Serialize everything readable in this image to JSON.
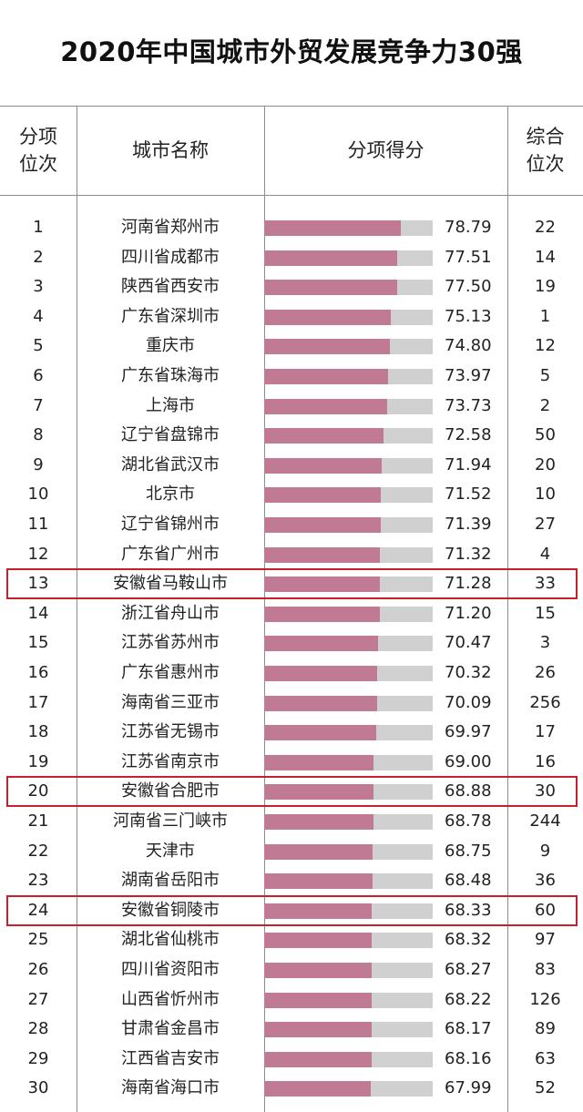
{
  "title": "2020年中国城市外贸发展竞争力30强",
  "headers": {
    "rank": "分项\n位次",
    "city": "城市名称",
    "score": "分项得分",
    "total": "综合\n位次"
  },
  "colors": {
    "bar": "#c07a93",
    "bar_track": "#d0d0d0",
    "highlight": "#c8202a"
  },
  "chart_data": {
    "type": "bar",
    "orientation": "horizontal",
    "title": "2020年中国城市外贸发展竞争力30强",
    "xlim": [
      0,
      100
    ],
    "grid": false,
    "highlighted_ranks": [
      13,
      20,
      24
    ],
    "rows": [
      {
        "rank": "1",
        "city": "河南省郑州市",
        "score": 78.79,
        "score_text": "78.79",
        "total": "22"
      },
      {
        "rank": "2",
        "city": "四川省成都市",
        "score": 77.51,
        "score_text": "77.51",
        "total": "14"
      },
      {
        "rank": "3",
        "city": "陕西省西安市",
        "score": 77.5,
        "score_text": "77.50",
        "total": "19"
      },
      {
        "rank": "4",
        "city": "广东省深圳市",
        "score": 75.13,
        "score_text": "75.13",
        "total": "1"
      },
      {
        "rank": "5",
        "city": "重庆市",
        "score": 74.8,
        "score_text": "74.80",
        "total": "12"
      },
      {
        "rank": "6",
        "city": "广东省珠海市",
        "score": 73.97,
        "score_text": "73.97",
        "total": "5"
      },
      {
        "rank": "7",
        "city": "上海市",
        "score": 73.73,
        "score_text": "73.73",
        "total": "2"
      },
      {
        "rank": "8",
        "city": "辽宁省盘锦市",
        "score": 72.58,
        "score_text": "72.58",
        "total": "50"
      },
      {
        "rank": "9",
        "city": "湖北省武汉市",
        "score": 71.94,
        "score_text": "71.94",
        "total": "20"
      },
      {
        "rank": "10",
        "city": "北京市",
        "score": 71.52,
        "score_text": "71.52",
        "total": "10"
      },
      {
        "rank": "11",
        "city": "辽宁省锦州市",
        "score": 71.39,
        "score_text": "71.39",
        "total": "27"
      },
      {
        "rank": "12",
        "city": "广东省广州市",
        "score": 71.32,
        "score_text": "71.32",
        "total": "4"
      },
      {
        "rank": "13",
        "city": "安徽省马鞍山市",
        "score": 71.28,
        "score_text": "71.28",
        "total": "33"
      },
      {
        "rank": "14",
        "city": "浙江省舟山市",
        "score": 71.2,
        "score_text": "71.20",
        "total": "15"
      },
      {
        "rank": "15",
        "city": "江苏省苏州市",
        "score": 70.47,
        "score_text": "70.47",
        "total": "3"
      },
      {
        "rank": "16",
        "city": "广东省惠州市",
        "score": 70.32,
        "score_text": "70.32",
        "total": "26"
      },
      {
        "rank": "17",
        "city": "海南省三亚市",
        "score": 70.09,
        "score_text": "70.09",
        "total": "256"
      },
      {
        "rank": "18",
        "city": "江苏省无锡市",
        "score": 69.97,
        "score_text": "69.97",
        "total": "17"
      },
      {
        "rank": "19",
        "city": "江苏省南京市",
        "score": 69.0,
        "score_text": "69.00",
        "total": "16"
      },
      {
        "rank": "20",
        "city": "安徽省合肥市",
        "score": 68.88,
        "score_text": "68.88",
        "total": "30"
      },
      {
        "rank": "21",
        "city": "河南省三门峡市",
        "score": 68.78,
        "score_text": "68.78",
        "total": "244"
      },
      {
        "rank": "22",
        "city": "天津市",
        "score": 68.75,
        "score_text": "68.75",
        "total": "9"
      },
      {
        "rank": "23",
        "city": "湖南省岳阳市",
        "score": 68.48,
        "score_text": "68.48",
        "total": "36"
      },
      {
        "rank": "24",
        "city": "安徽省铜陵市",
        "score": 68.33,
        "score_text": "68.33",
        "total": "60"
      },
      {
        "rank": "25",
        "city": "湖北省仙桃市",
        "score": 68.32,
        "score_text": "68.32",
        "total": "97"
      },
      {
        "rank": "26",
        "city": "四川省资阳市",
        "score": 68.27,
        "score_text": "68.27",
        "total": "83"
      },
      {
        "rank": "27",
        "city": "山西省忻州市",
        "score": 68.22,
        "score_text": "68.22",
        "total": "126"
      },
      {
        "rank": "28",
        "city": "甘肃省金昌市",
        "score": 68.17,
        "score_text": "68.17",
        "total": "89"
      },
      {
        "rank": "29",
        "city": "江西省吉安市",
        "score": 68.16,
        "score_text": "68.16",
        "total": "63"
      },
      {
        "rank": "30",
        "city": "海南省海口市",
        "score": 67.99,
        "score_text": "67.99",
        "total": "52"
      }
    ]
  }
}
